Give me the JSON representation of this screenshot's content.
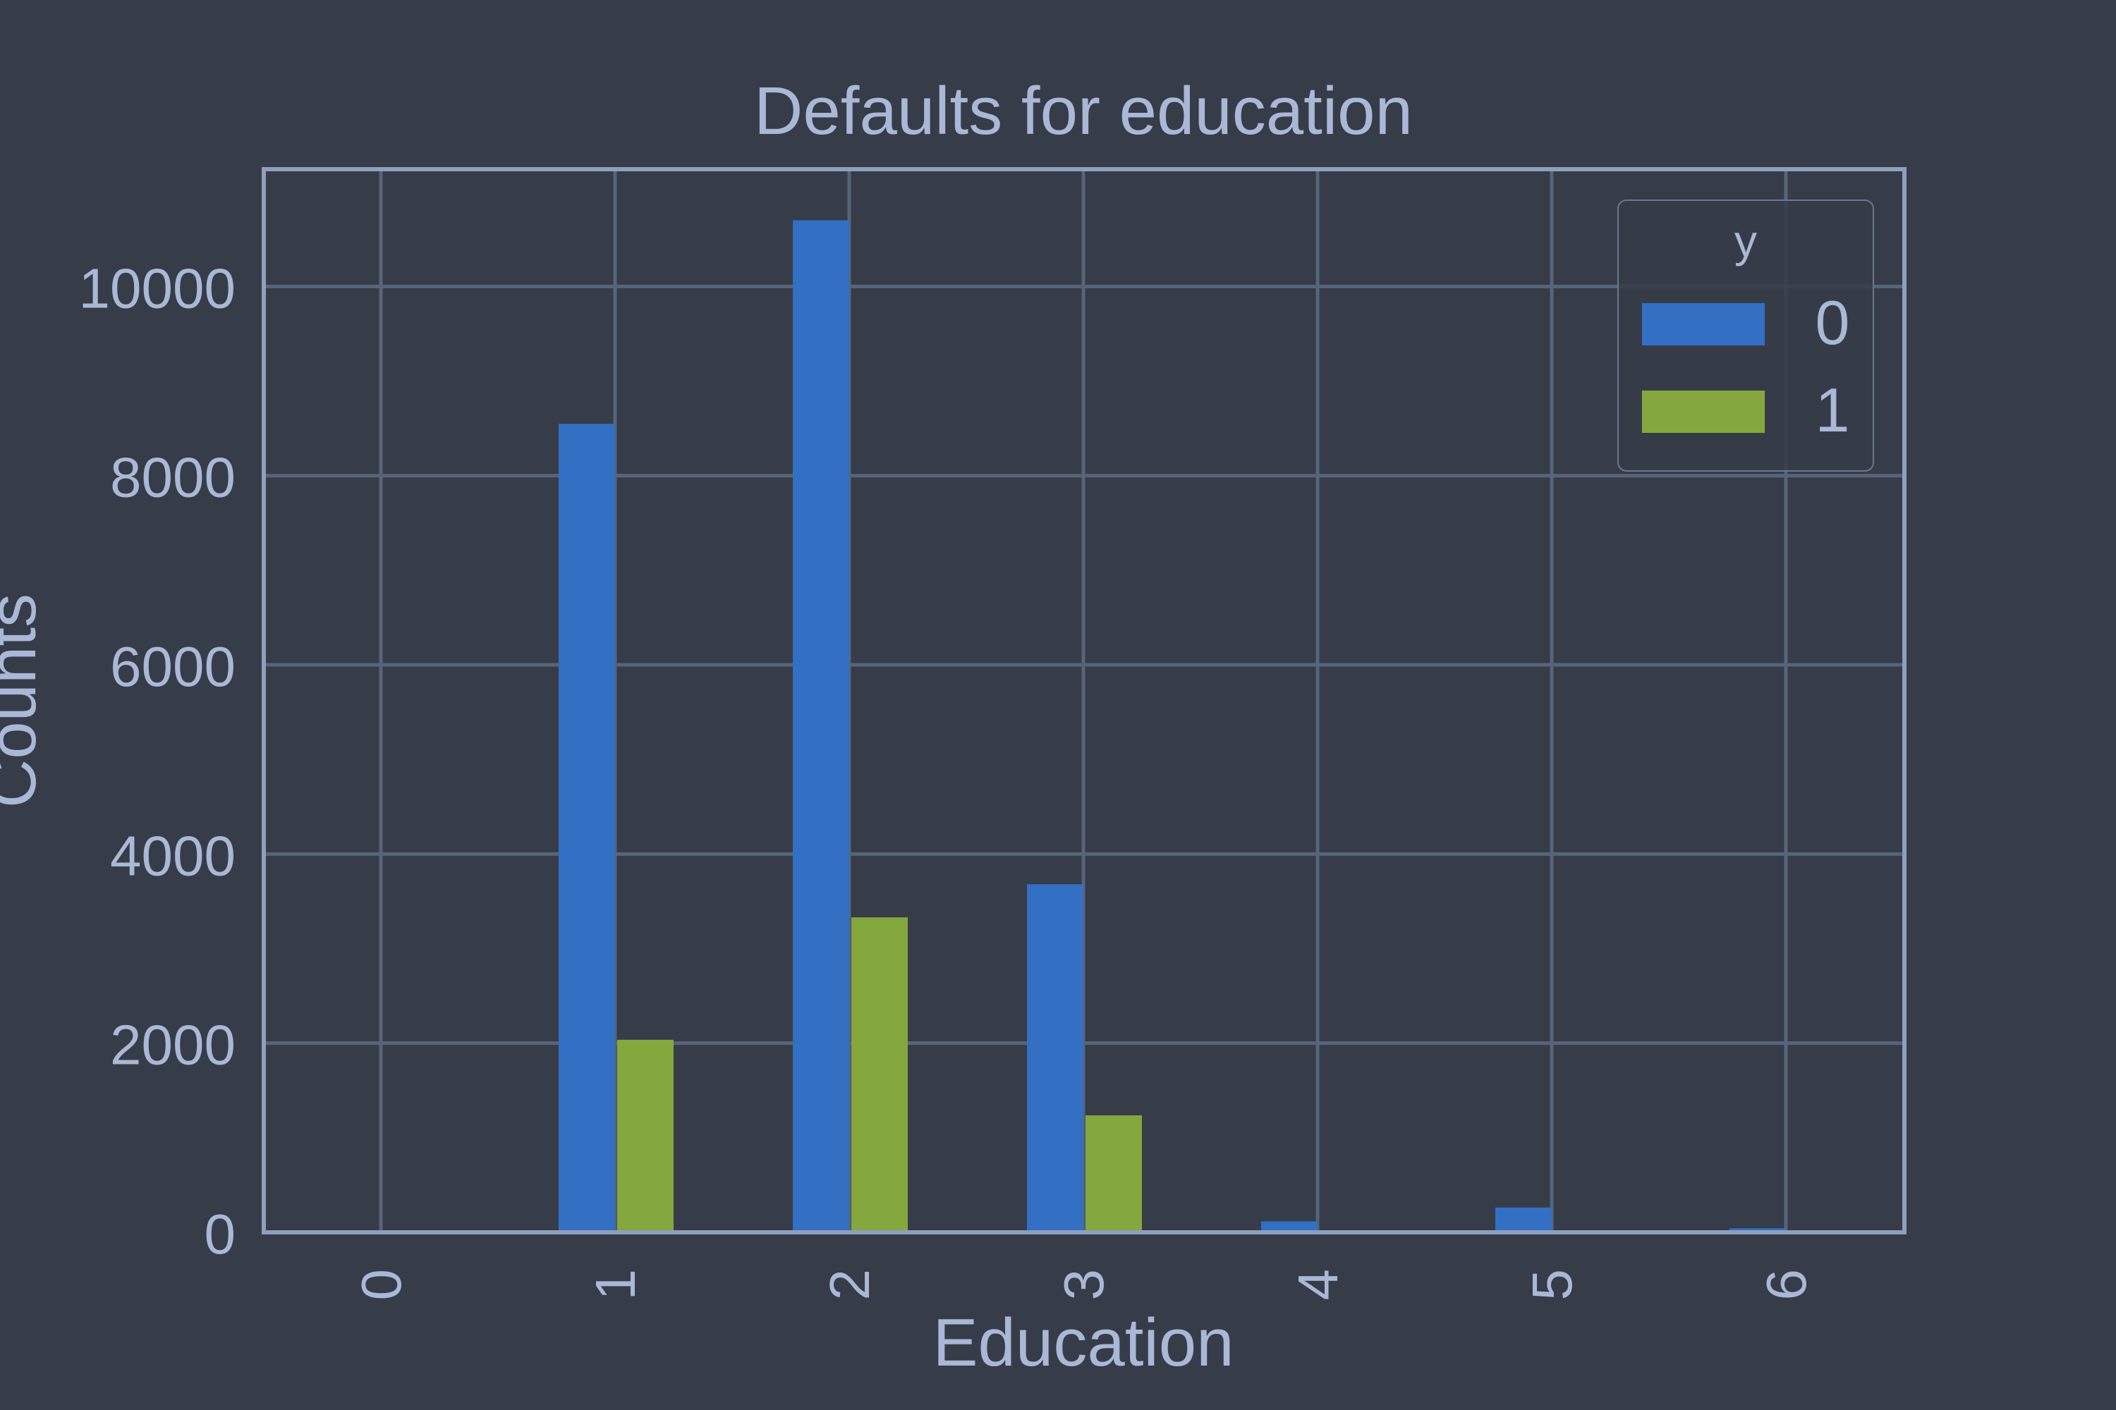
{
  "chart_data": {
    "type": "bar",
    "title": "Defaults for education",
    "xlabel": "Education",
    "ylabel": "Counts",
    "categories": [
      "0",
      "1",
      "2",
      "3",
      "4",
      "5",
      "6"
    ],
    "series": [
      {
        "name": "0",
        "values": [
          14,
          8549,
          10700,
          3680,
          116,
          262,
          43
        ],
        "color": "#3370c4"
      },
      {
        "name": "1",
        "values": [
          0,
          2036,
          3330,
          1237,
          7,
          18,
          8
        ],
        "color": "#84a83d"
      }
    ],
    "ylim": [
      0,
      11240
    ],
    "yticks": [
      0,
      2000,
      4000,
      6000,
      8000,
      10000
    ],
    "grid": true,
    "legend": {
      "title": "y",
      "position": "top-right"
    },
    "colors": {
      "background": "#363c48",
      "grid": "#56657a",
      "frame": "#8f9fbd",
      "text": "#a9b8d6"
    }
  }
}
